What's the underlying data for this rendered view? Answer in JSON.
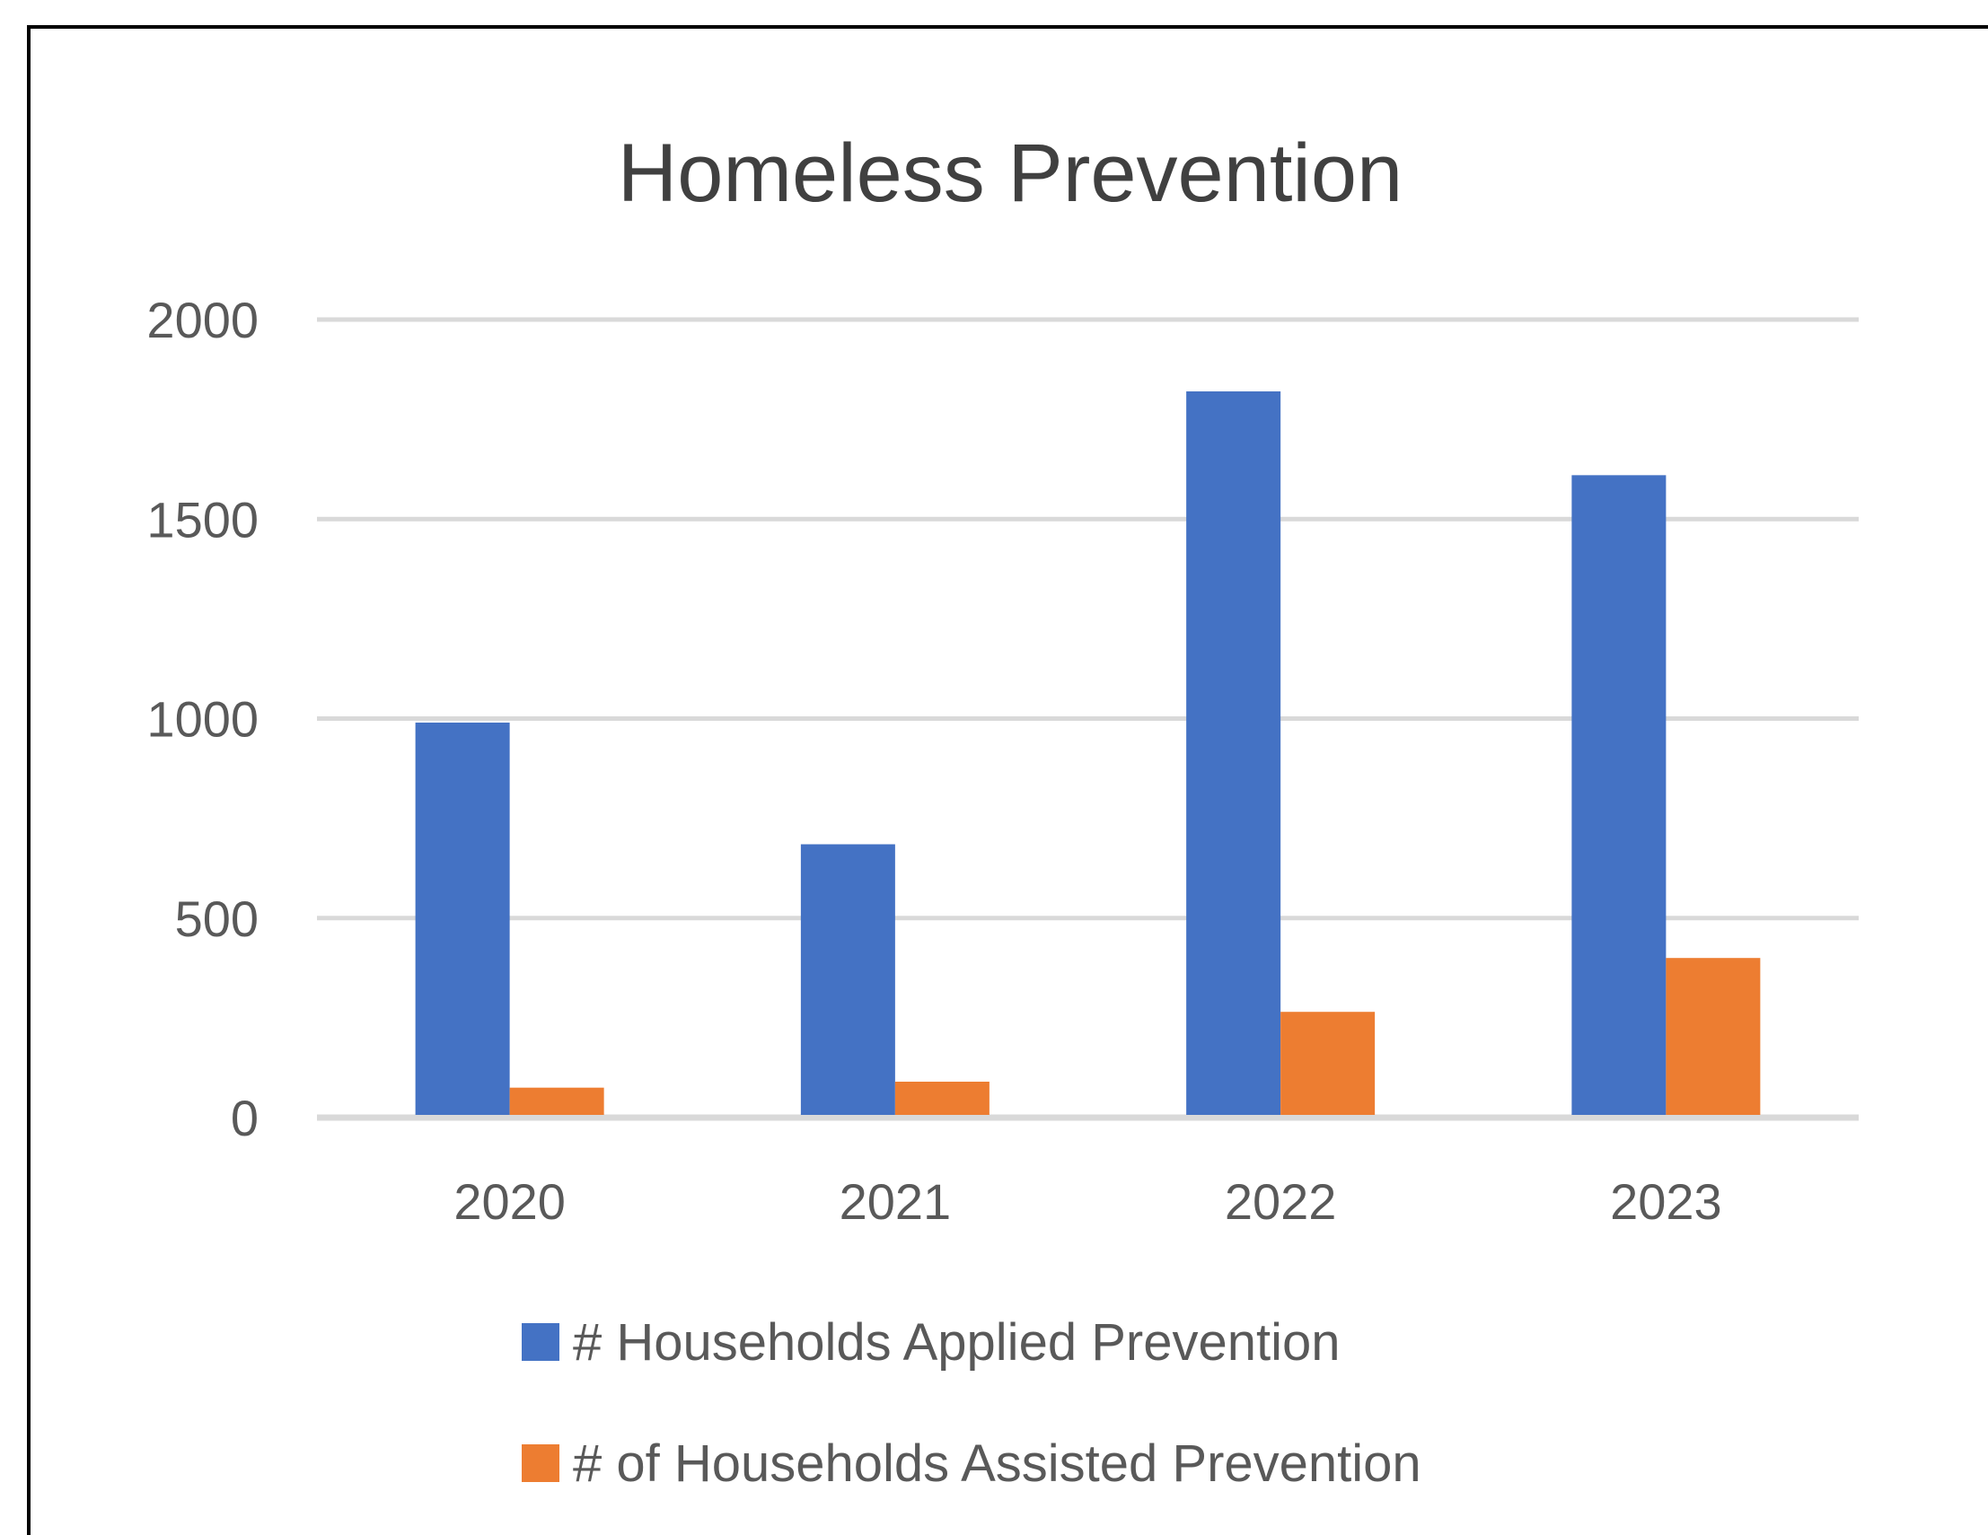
{
  "chart_data": {
    "type": "bar",
    "title": "Homeless Prevention",
    "categories": [
      "2020",
      "2021",
      "2022",
      "2023"
    ],
    "series": [
      {
        "name": "# Households Applied Prevention",
        "color": "#4472C4",
        "values": [
          990,
          685,
          1820,
          1610
        ]
      },
      {
        "name": "# of Households Assisted Prevention",
        "color": "#ED7D31",
        "values": [
          75,
          90,
          265,
          400
        ]
      }
    ],
    "ylim": [
      0,
      2000
    ],
    "yticks": [
      "0",
      "500",
      "1000",
      "1500",
      "2000"
    ],
    "grid": true,
    "gridColor": "#D9D9D9",
    "legend_position": "bottom"
  }
}
